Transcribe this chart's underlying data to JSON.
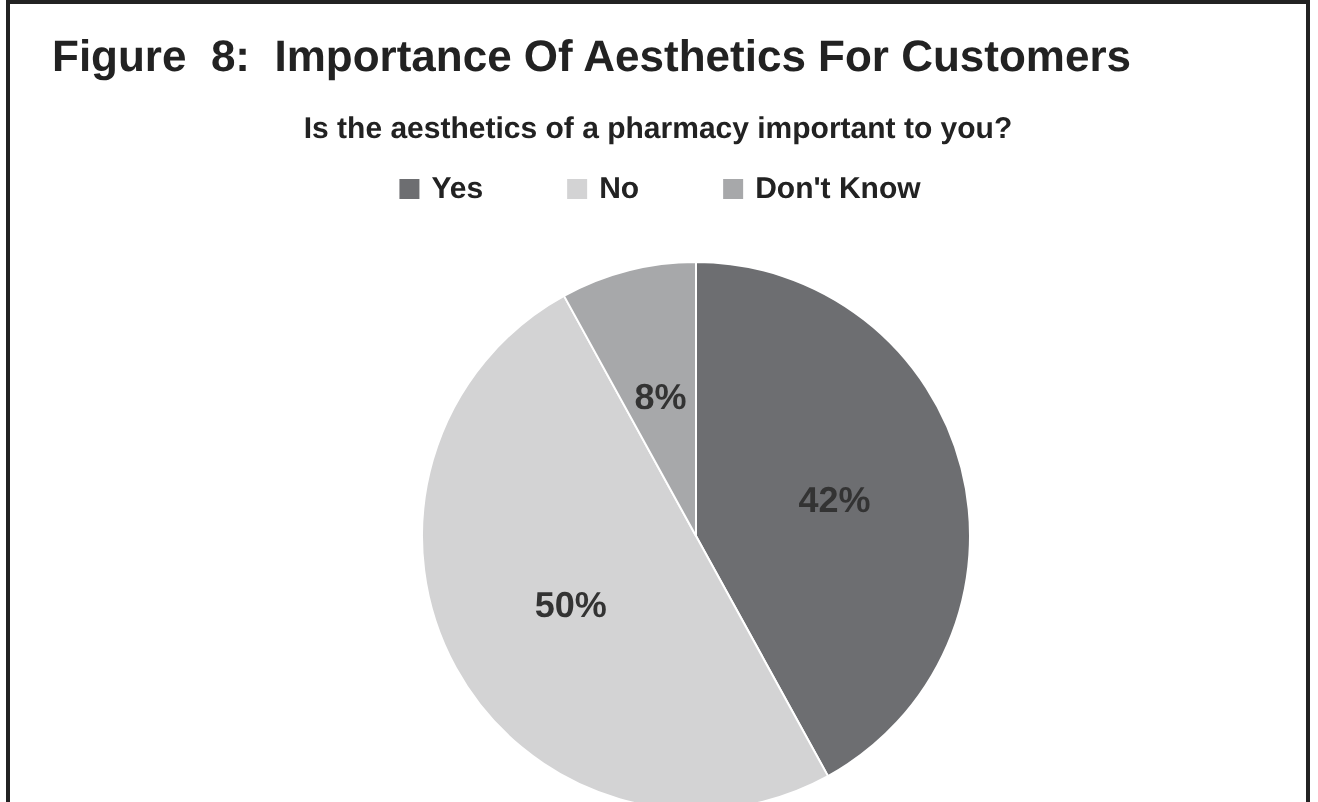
{
  "chart_data": {
    "type": "pie",
    "title": "Figure  8:  Importance Of Aesthetics For Customers",
    "subtitle": "Is the aesthetics of a pharmacy important to you?",
    "categories": [
      "Yes",
      "No",
      "Don't Know"
    ],
    "values": [
      42,
      50,
      8
    ],
    "value_labels": [
      "42%",
      "50%",
      "8%"
    ],
    "colors": [
      "#6d6e71",
      "#d3d3d4",
      "#a7a8aa"
    ],
    "legend": "top"
  }
}
